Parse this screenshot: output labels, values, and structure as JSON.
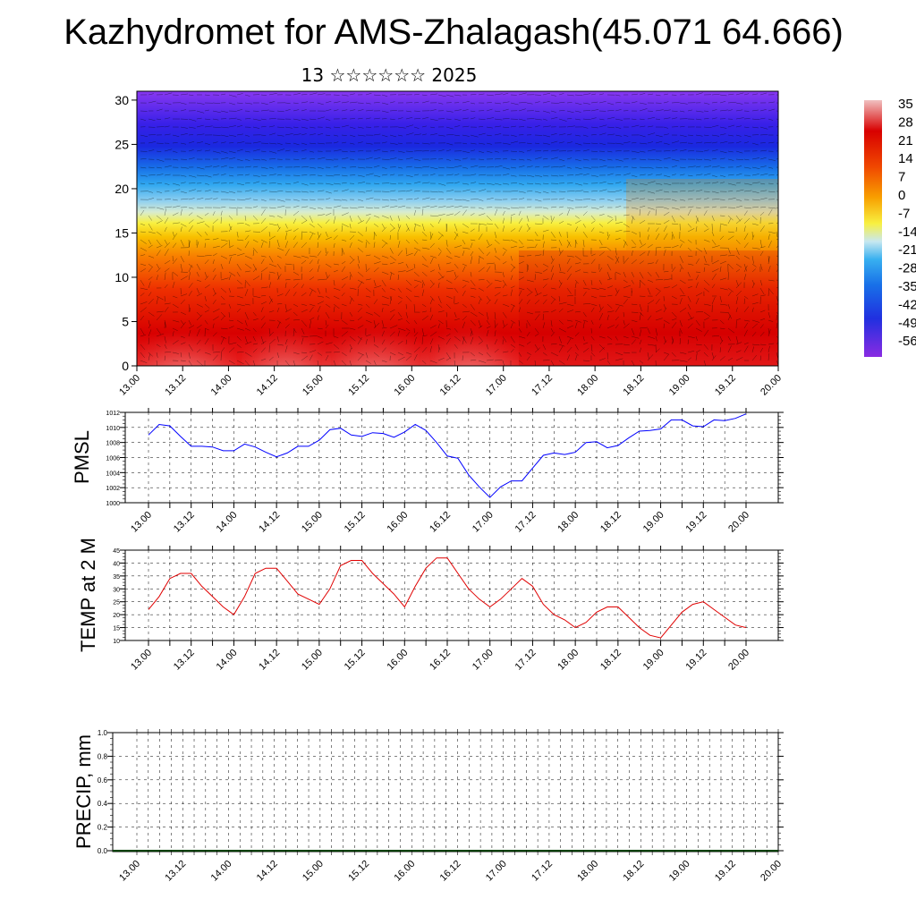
{
  "header": {
    "title": "Kazhydromet for AMS-Zhalagash(45.071 64.666)",
    "subtitle": "13 ☆☆☆☆☆☆ 2025"
  },
  "chart_data": [
    {
      "type": "heatmap",
      "panel": "cross-section",
      "ylim": [
        0,
        31
      ],
      "yticks": [
        0,
        5,
        10,
        15,
        20,
        25,
        30
      ],
      "xticks": [
        "13.00",
        "13.12",
        "14.00",
        "14.12",
        "15.00",
        "15.12",
        "16.00",
        "16.12",
        "17.00",
        "17.12",
        "18.00",
        "18.12",
        "19.00",
        "19.12",
        "20.00"
      ],
      "colorbar_labels": [
        "35",
        "28",
        "21",
        "14",
        "7",
        "0",
        "-7",
        "-14",
        "-21",
        "-28",
        "-35",
        "-42",
        "-49",
        "-56"
      ],
      "colormap": [
        "#f2b8b8",
        "#e83030",
        "#d80000",
        "#f04800",
        "#f88800",
        "#f8c000",
        "#f8f040",
        "#c8e8f0",
        "#38b0f0",
        "#1870e8",
        "#2030e0",
        "#5018f0",
        "#8838f0"
      ]
    },
    {
      "type": "line",
      "ylabel": "PMSL",
      "ylim": [
        1000,
        1012
      ],
      "yticks": [
        "1000",
        "1002",
        "1004",
        "1006",
        "1008",
        "1010",
        "1012"
      ],
      "xticks": [
        "13.00",
        "13.12",
        "14.00",
        "14.12",
        "15.00",
        "15.12",
        "16.00",
        "16.12",
        "17.00",
        "17.12",
        "18.00",
        "18.12",
        "19.00",
        "19.12",
        "20.00"
      ],
      "color": "#0000ff",
      "x": [
        0,
        3,
        6,
        9,
        12,
        15,
        18,
        21,
        24,
        27,
        30,
        33,
        36,
        39,
        42,
        45,
        48,
        51,
        54,
        57,
        60,
        63,
        66,
        69,
        72,
        75,
        78,
        81,
        84,
        87,
        90,
        93,
        96,
        99,
        102,
        105,
        108,
        111,
        114,
        117,
        120,
        123,
        126,
        129,
        132,
        135,
        138,
        141,
        144,
        147,
        150,
        153,
        156,
        159,
        162,
        165,
        168
      ],
      "values": [
        1009,
        1010.4,
        1010.2,
        1008.8,
        1007.5,
        1007.5,
        1007.4,
        1006.9,
        1006.9,
        1007.8,
        1007.4,
        1006.7,
        1006.1,
        1006.6,
        1007.5,
        1007.5,
        1008.3,
        1009.7,
        1009.9,
        1009.0,
        1008.8,
        1009.3,
        1009.2,
        1008.7,
        1009.4,
        1010.4,
        1009.6,
        1008.0,
        1006.2,
        1005.9,
        1003.7,
        1002.1,
        1000.7,
        1002.1,
        1002.9,
        1002.9,
        1004.6,
        1006.3,
        1006.6,
        1006.4,
        1006.7,
        1008.0,
        1008.1,
        1007.3,
        1007.6,
        1008.6,
        1009.5,
        1009.6,
        1009.8,
        1011.0,
        1011.0,
        1010.2,
        1010.1,
        1011.0,
        1010.9,
        1011.2,
        1011.8
      ]
    },
    {
      "type": "line",
      "ylabel": "TEMP at 2 M",
      "ylim": [
        10,
        45
      ],
      "yticks": [
        "10",
        "15",
        "20",
        "25",
        "30",
        "35",
        "40",
        "45"
      ],
      "xticks": [
        "13.00",
        "13.12",
        "14.00",
        "14.12",
        "15.00",
        "15.12",
        "16.00",
        "16.12",
        "17.00",
        "17.12",
        "18.00",
        "18.12",
        "19.00",
        "19.12",
        "20.00"
      ],
      "color": "#e00000",
      "x": [
        0,
        3,
        6,
        9,
        12,
        15,
        18,
        21,
        24,
        27,
        30,
        33,
        36,
        39,
        42,
        45,
        48,
        51,
        54,
        57,
        60,
        63,
        66,
        69,
        72,
        75,
        78,
        81,
        84,
        87,
        90,
        93,
        96,
        99,
        102,
        105,
        108,
        111,
        114,
        117,
        120,
        123,
        126,
        129,
        132,
        135,
        138,
        141,
        144,
        147,
        150,
        153,
        156,
        159,
        162,
        165,
        168
      ],
      "values": [
        22,
        27,
        34,
        36,
        36,
        31,
        27,
        23,
        20,
        27,
        36,
        38,
        38,
        33,
        28,
        26,
        24,
        30,
        39,
        41,
        41,
        36,
        32,
        28,
        23,
        31,
        38,
        42,
        42,
        36,
        30,
        26,
        23,
        26,
        30,
        34,
        31,
        24,
        20,
        18,
        15,
        17,
        21,
        23,
        23,
        19,
        15,
        12,
        11,
        16,
        21,
        24,
        25,
        22,
        19,
        16,
        15
      ]
    },
    {
      "type": "bar",
      "ylabel": "PRECIP, mm",
      "ylim": [
        0,
        1
      ],
      "yticks": [
        "0.0",
        "0.2",
        "0.4",
        "0.6",
        "0.8",
        "1.0"
      ],
      "xticks": [
        "13.00",
        "13.12",
        "14.00",
        "14.12",
        "15.00",
        "15.12",
        "16.00",
        "16.12",
        "17.00",
        "17.12",
        "18.00",
        "18.12",
        "19.00",
        "19.12",
        "20.00"
      ],
      "values": [
        0,
        0,
        0,
        0,
        0,
        0,
        0,
        0,
        0,
        0,
        0,
        0,
        0,
        0,
        0,
        0,
        0,
        0,
        0,
        0,
        0,
        0,
        0,
        0,
        0,
        0,
        0,
        0,
        0,
        0,
        0,
        0,
        0,
        0,
        0,
        0,
        0,
        0,
        0,
        0,
        0,
        0,
        0,
        0,
        0,
        0,
        0,
        0,
        0,
        0,
        0,
        0,
        0,
        0,
        0,
        0
      ]
    }
  ]
}
